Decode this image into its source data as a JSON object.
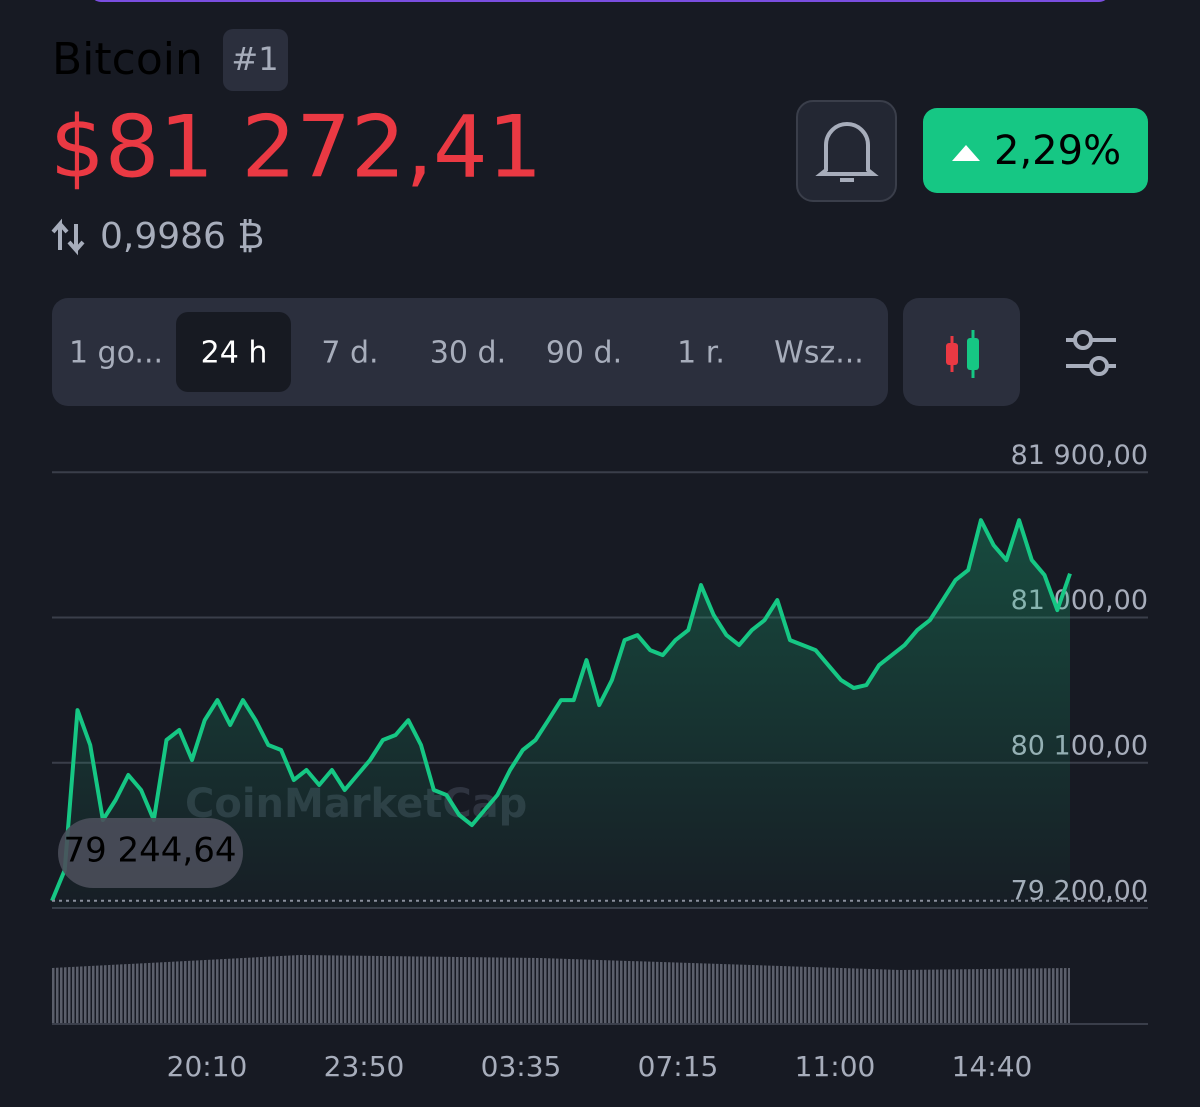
{
  "header": {
    "name": "Bitcoin",
    "rank": "#1",
    "price": "$81 272,41",
    "btc_ratio": "0,9986 ₿",
    "change": "2,29%"
  },
  "tabs": [
    "1 go...",
    "24 h",
    "7 d.",
    "30 d.",
    "90 d.",
    "1 r.",
    "Wsz..."
  ],
  "chart_data": {
    "type": "line",
    "watermark": "CoinMarketCap",
    "color": "#16c784",
    "values": [
      79244.64,
      79435,
      80426,
      80210,
      79745,
      79869,
      80024,
      79931,
      79745,
      80241,
      80303,
      80117,
      80364,
      80488,
      80334,
      80488,
      80364,
      80210,
      80179,
      79993,
      80055,
      79962,
      80055,
      79931,
      80024,
      80117,
      80241,
      80272,
      80364,
      80210,
      79931,
      79900,
      79776,
      79714,
      79807,
      79900,
      80055,
      80179,
      80241,
      80364,
      80488,
      80488,
      80736,
      80457,
      80612,
      80860,
      80891,
      80798,
      80767,
      80860,
      80922,
      81201,
      81015,
      80891,
      80829,
      80922,
      80984,
      81108,
      80860,
      80829,
      80798,
      80705,
      80612,
      80563,
      80581,
      80705,
      80767,
      80829,
      80922,
      80984,
      81108,
      81232,
      81294,
      81603,
      81448,
      81356,
      81603,
      81356,
      81263,
      81046,
      81272
    ],
    "ylim": [
      79200,
      82100
    ],
    "yticks": [
      {
        "value": 79200,
        "label": "79 200,00"
      },
      {
        "value": 80100,
        "label": "80 100,00"
      },
      {
        "value": 81000,
        "label": "81 000,00"
      },
      {
        "value": 81900,
        "label": "81 900,00"
      }
    ],
    "min_label": {
      "value": 79244.64,
      "label": "79 244,64"
    },
    "x_labels": [
      "20:10",
      "23:50",
      "03:35",
      "07:15",
      "11:00",
      "14:40"
    ],
    "grid": true
  }
}
